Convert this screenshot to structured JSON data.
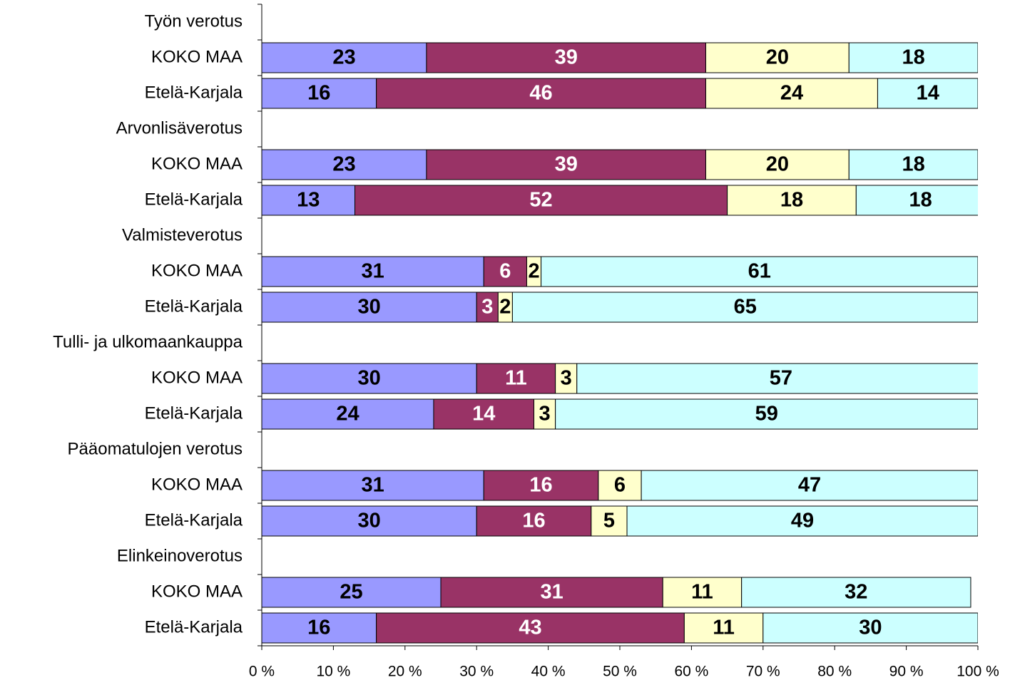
{
  "chart_data": {
    "type": "stacked-bar-horizontal",
    "categories": [
      "Työn verotus",
      "KOKO MAA",
      "Etelä-Karjala",
      "Arvonlisäverotus",
      "KOKO MAA",
      "Etelä-Karjala",
      "Valmisteverotus",
      "KOKO MAA",
      "Etelä-Karjala",
      "Tulli- ja ulkomaankauppa",
      "KOKO MAA",
      "Etelä-Karjala",
      "Pääomatulojen verotus",
      "KOKO MAA",
      "Etelä-Karjala",
      "Elinkeinoverotus",
      "KOKO MAA",
      "Etelä-Karjala"
    ],
    "series": [
      {
        "color": "#9999ff",
        "values": [
          null,
          23,
          16,
          null,
          23,
          13,
          null,
          31,
          30,
          null,
          30,
          24,
          null,
          31,
          30,
          null,
          25,
          16
        ]
      },
      {
        "color": "#993366",
        "values": [
          null,
          39,
          46,
          null,
          39,
          52,
          null,
          6,
          3,
          null,
          11,
          14,
          null,
          16,
          16,
          null,
          31,
          43
        ]
      },
      {
        "color": "#ffffcc",
        "values": [
          null,
          20,
          24,
          null,
          20,
          18,
          null,
          2,
          2,
          null,
          3,
          3,
          null,
          6,
          5,
          null,
          11,
          11
        ]
      },
      {
        "color": "#ccffff",
        "values": [
          null,
          18,
          14,
          null,
          18,
          18,
          null,
          61,
          65,
          null,
          57,
          59,
          null,
          47,
          49,
          null,
          32,
          30
        ]
      }
    ],
    "xlim": [
      0,
      100
    ],
    "xticks": [
      {
        "value": 0,
        "label": "0 %"
      },
      {
        "value": 10,
        "label": "10 %"
      },
      {
        "value": 20,
        "label": "20 %"
      },
      {
        "value": 30,
        "label": "30 %"
      },
      {
        "value": 40,
        "label": "40 %"
      },
      {
        "value": 50,
        "label": "50 %"
      },
      {
        "value": 60,
        "label": "60 %"
      },
      {
        "value": 70,
        "label": "70 %"
      },
      {
        "value": 80,
        "label": "80 %"
      },
      {
        "value": 90,
        "label": "90 %"
      },
      {
        "value": 100,
        "label": "100 %"
      }
    ]
  }
}
